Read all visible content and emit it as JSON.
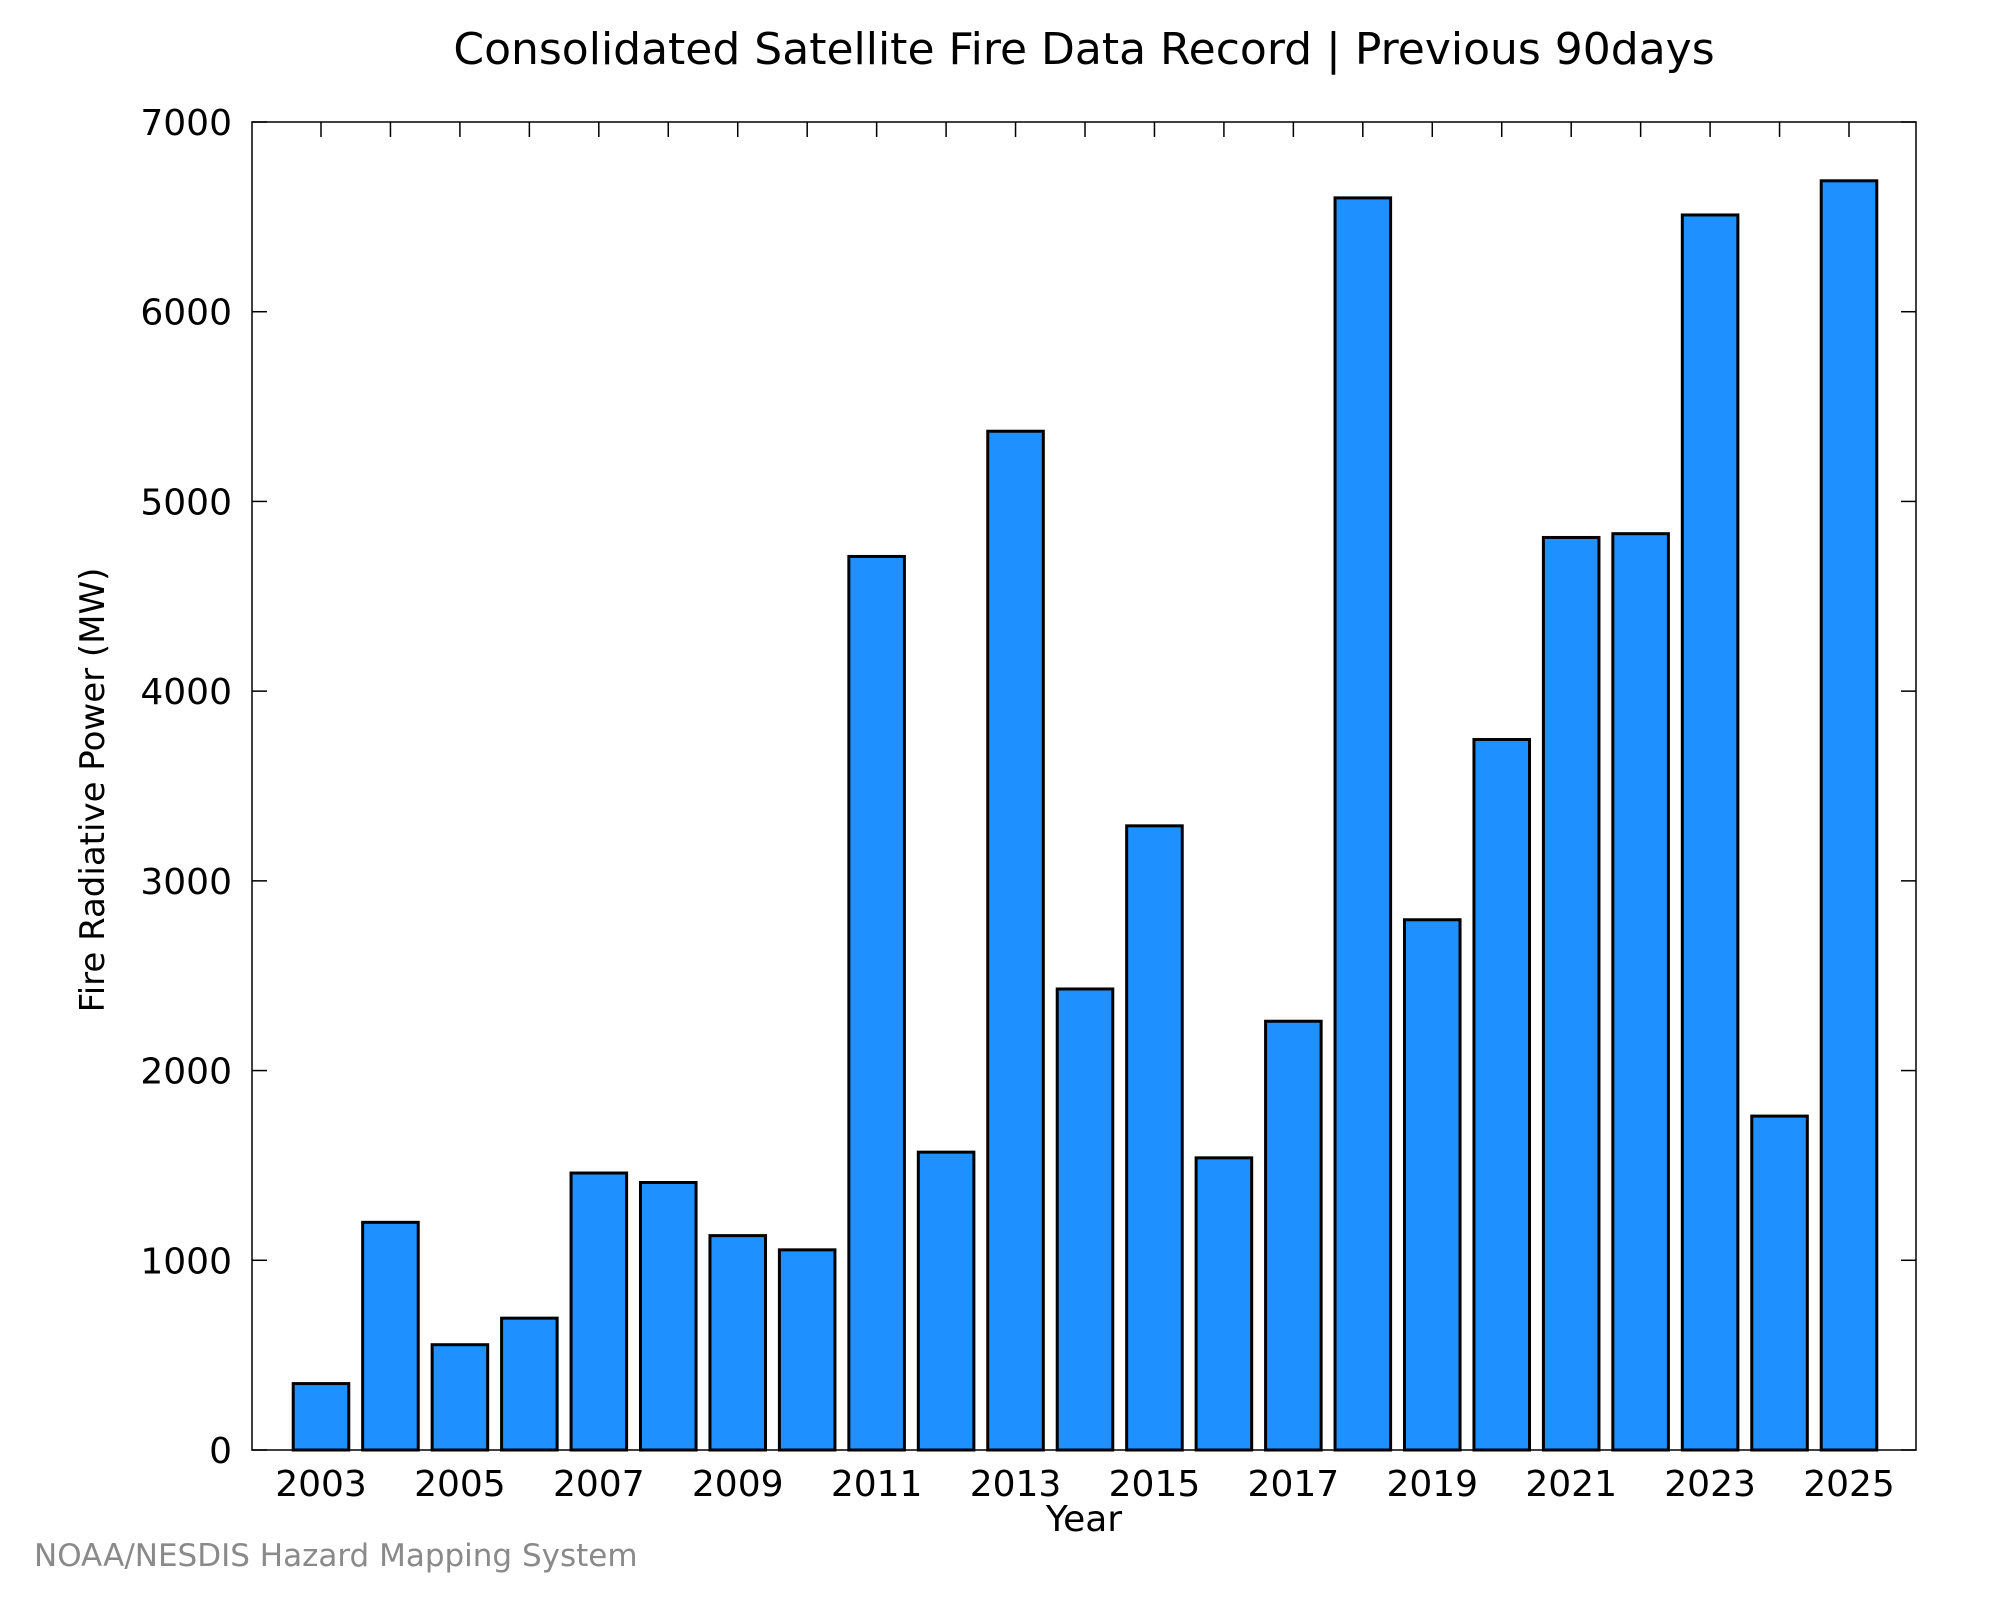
{
  "chart_data": {
    "type": "bar",
    "title": "Consolidated Satellite Fire Data Record | Previous 90days",
    "xlabel": "Year",
    "ylabel": "Fire Radiative Power (MW)",
    "ylim": [
      0,
      7000
    ],
    "yticks": [
      0,
      1000,
      2000,
      3000,
      4000,
      5000,
      6000,
      7000
    ],
    "xticks": [
      "2003",
      "2005",
      "2007",
      "2009",
      "2011",
      "2013",
      "2015",
      "2017",
      "2019",
      "2021",
      "2023",
      "2025"
    ],
    "categories": [
      "2003",
      "2004",
      "2005",
      "2006",
      "2007",
      "2008",
      "2009",
      "2010",
      "2011",
      "2012",
      "2013",
      "2014",
      "2015",
      "2016",
      "2017",
      "2018",
      "2019",
      "2020",
      "2021",
      "2022",
      "2023",
      "2024",
      "2025"
    ],
    "values": [
      350,
      1200,
      555,
      695,
      1460,
      1410,
      1130,
      1055,
      4710,
      1570,
      5370,
      2430,
      3290,
      1540,
      2260,
      6600,
      2795,
      3745,
      4810,
      4830,
      6510,
      1760,
      6690
    ],
    "bar_color": "#1e90ff",
    "grid": false,
    "legend": "none"
  },
  "footer": {
    "credit": "NOAA/NESDIS Hazard Mapping System"
  }
}
